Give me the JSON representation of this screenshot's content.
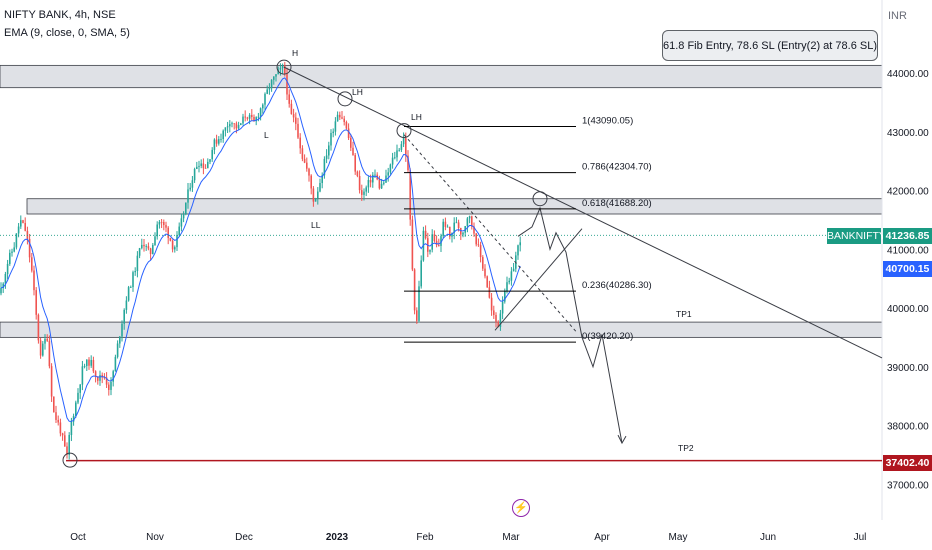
{
  "header": {
    "title": "NIFTY BANK, 4h, NSE",
    "study": "EMA (9, close, 0, SMA, 5)"
  },
  "note": "61.8 Fib Entry, 78.6 SL (Entry(2) at 78.6 SL)",
  "currency": "INR",
  "price_tags": {
    "symbol": "BANKNIFTY",
    "last": "41236.85",
    "ema": "40700.15",
    "level": "37402.40"
  },
  "colors": {
    "up": "#26a69a",
    "down": "#ef5350",
    "ema": "#2962ff",
    "zone": "#d1d4dc",
    "level": "#b0161f"
  },
  "icons": [
    "lightning-icon"
  ],
  "chart_data": {
    "type": "candlestick",
    "title": "NIFTY BANK, 4h, NSE",
    "series": [
      "EMA (9, close, 0, SMA, 5)"
    ],
    "y_ticks": [
      37000,
      38000,
      39000,
      40000,
      41000,
      42000,
      43000,
      44000
    ],
    "y_tick_labels": [
      "37000.00",
      "38000.00",
      "39000.00",
      "40000.00",
      "41000.00",
      "42000.00",
      "43000.00",
      "44000.00"
    ],
    "ylim": [
      36800,
      45200
    ],
    "x_tick_labels": [
      "Oct",
      "Nov",
      "Dec",
      "2023",
      "Feb",
      "Mar",
      "Apr",
      "May",
      "Jun",
      "Jul"
    ],
    "last_price": 41236.85,
    "ema_value": 40700.15,
    "horizontal_level": 37402.4,
    "fib_levels": [
      {
        "ratio": "1",
        "value": 43090.05,
        "label": "1(43090.05)"
      },
      {
        "ratio": "0.786",
        "value": 42304.7,
        "label": "0.786(42304.70)"
      },
      {
        "ratio": "0.618",
        "value": 41688.2,
        "label": "0.618(41688.20)"
      },
      {
        "ratio": "0.236",
        "value": 40286.3,
        "label": "0.236(40286.30)"
      },
      {
        "ratio": "0",
        "value": 39420.2,
        "label": "0(39420.20)"
      }
    ],
    "zones": [
      {
        "from": 43750,
        "to": 44130
      },
      {
        "from": 41600,
        "to": 41860
      },
      {
        "from": 39500,
        "to": 39760
      }
    ],
    "annotations": [
      "H",
      "LH",
      "LH",
      "L",
      "LL",
      "TP1",
      "TP2"
    ],
    "grid": false
  }
}
